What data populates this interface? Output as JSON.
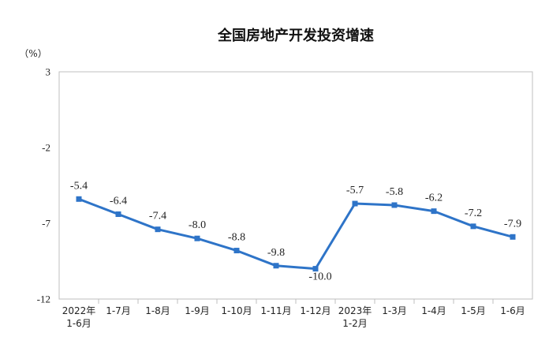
{
  "chart_data": {
    "type": "line",
    "title": "全国房地产开发投资增速",
    "unit": "（%）",
    "ylim": [
      -12,
      3
    ],
    "yticks": [
      3,
      -2,
      -7,
      -12
    ],
    "grid": false,
    "legend": "none",
    "categories": [
      [
        "2022年",
        "1-6月"
      ],
      [
        "1-7月"
      ],
      [
        "1-8月"
      ],
      [
        "1-9月"
      ],
      [
        "1-10月"
      ],
      [
        "1-11月"
      ],
      [
        "1-12月"
      ],
      [
        "2023年",
        "1-2月"
      ],
      [
        "1-3月"
      ],
      [
        "1-4月"
      ],
      [
        "1-5月"
      ],
      [
        "1-6月"
      ]
    ],
    "series": [
      {
        "values": [
          -5.4,
          -6.4,
          -7.4,
          -8.0,
          -8.8,
          -9.8,
          -10.0,
          -5.7,
          -5.8,
          -6.2,
          -7.2,
          -7.9
        ],
        "labels": [
          "-5.4",
          "-6.4",
          "-7.4",
          "-8.0",
          "-8.8",
          "-9.8",
          "-10.0",
          "-5.7",
          "-5.8",
          "-6.2",
          "-7.2",
          "-7.9"
        ]
      }
    ],
    "colors": {
      "line": "#2E74C8",
      "marker": "#2E74C8",
      "axis": "#BFBFBF",
      "text": "#222222"
    }
  }
}
